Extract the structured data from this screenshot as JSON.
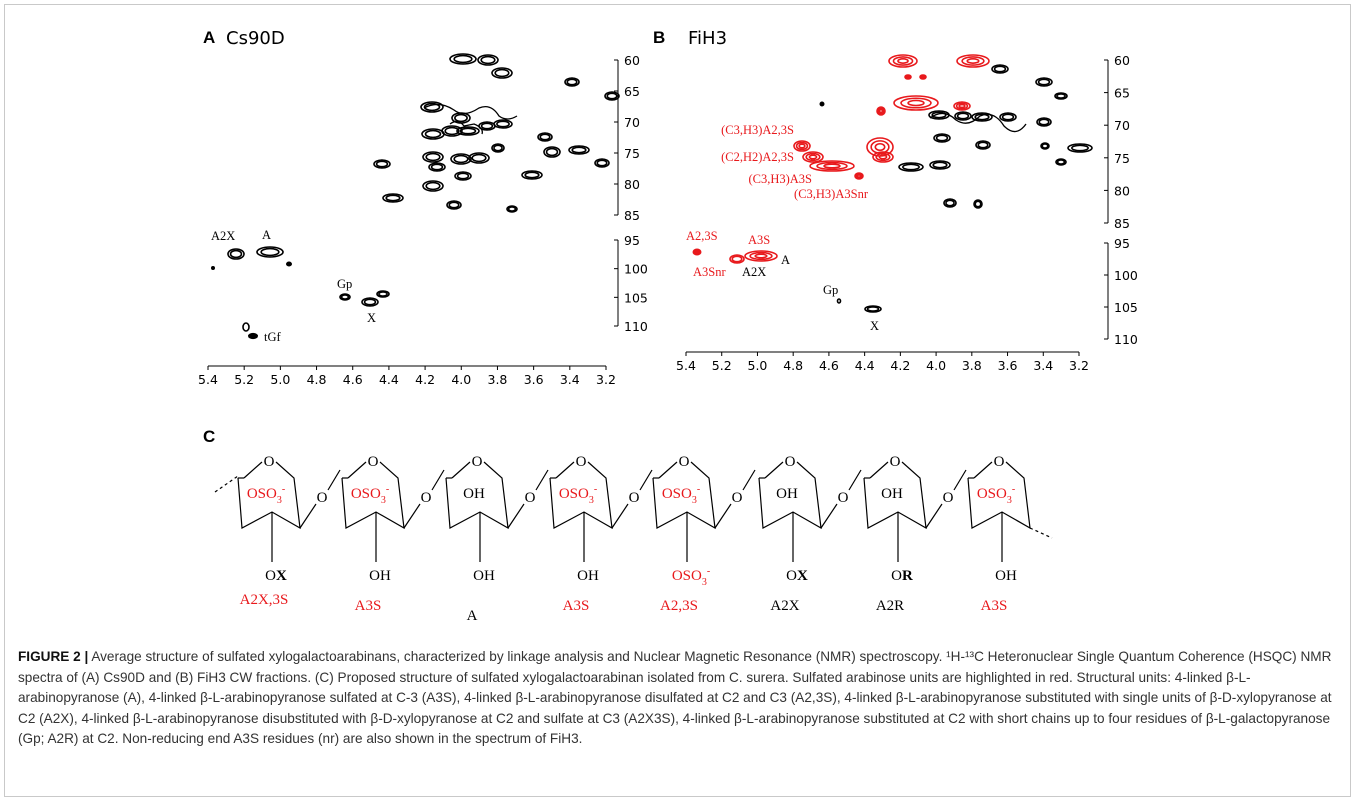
{
  "panels": {
    "A": {
      "letter": "A",
      "name": "Cs90D",
      "x_ticks": [
        "5.4",
        "5.2",
        "5.0",
        "4.8",
        "4.6",
        "4.4",
        "4.2",
        "4.0",
        "3.8",
        "3.6",
        "3.4",
        "3.2"
      ],
      "y_ticks_upper": [
        "60",
        "65",
        "70",
        "75",
        "80",
        "85"
      ],
      "y_ticks_lower": [
        "95",
        "100",
        "105",
        "110"
      ],
      "annotations": [
        "A2X",
        "A",
        "Gp",
        "X",
        "tGf"
      ]
    },
    "B": {
      "letter": "B",
      "name": "FiH3",
      "x_ticks": [
        "5.4",
        "5.2",
        "5.0",
        "4.8",
        "4.6",
        "4.4",
        "4.2",
        "4.0",
        "3.8",
        "3.6",
        "3.4",
        "3.2"
      ],
      "y_ticks_upper": [
        "60",
        "65",
        "70",
        "75",
        "80",
        "85"
      ],
      "y_ticks_lower": [
        "95",
        "100",
        "105",
        "110"
      ],
      "red_annotations": [
        "(C3,H3)A2,3S",
        "(C2,H2)A2,3S",
        "(C3,H3)A3S",
        "(C3,H3)A3Snr",
        "A2,3S",
        "A3S",
        "A3Snr"
      ],
      "black_annotations": [
        "A",
        "A2X",
        "Gp",
        "X"
      ]
    },
    "C": {
      "letter": "C",
      "substituents": [
        "OSO3-",
        "OSO3-",
        "OH",
        "OSO3-",
        "OSO3-",
        "OH",
        "OH",
        "OSO3-"
      ],
      "bottom_groups": [
        "OX",
        "OH",
        "OH",
        "OH",
        "OSO3-",
        "OX",
        "OR",
        "OH"
      ],
      "unit_labels": [
        "A2X,3S",
        "A3S",
        "A",
        "A3S",
        "A2,3S",
        "A2X",
        "A2R",
        "A3S"
      ]
    }
  },
  "colors": {
    "red": "#e8191c",
    "black": "#000000",
    "caption": "#333333"
  },
  "caption": {
    "label": "FIGURE 2 |",
    "text": "Average structure of sulfated xylogalactoarabinans, characterized by linkage analysis and Nuclear Magnetic Resonance (NMR) spectroscopy. ¹H-¹³C Heteronuclear Single Quantum Coherence (HSQC) NMR spectra of (A) Cs90D and (B) FiH3 CW fractions. (C) Proposed structure of sulfated xylogalactoarabinan isolated from C. surera. Sulfated arabinose units are highlighted in red. Structural units: 4-linked β-L-arabinopyranose (A), 4-linked β-L-arabinopyranose sulfated at C-3 (A3S), 4-linked β-L-arabinopyranose disulfated at C2 and C3 (A2,3S), 4-linked β-L-arabinopyranose substituted with single units of β-D-xylopyranose at C2 (A2X), 4-linked β-L-arabinopyranose disubstituted with β-D-xylopyranose at C2 and sulfate at C3 (A2X3S), 4-linked β-L-arabinopyranose substituted at C2 with short chains up to four residues of β-L-galactopyranose (Gp; A2R) at C2. Non-reducing end A3S residues (nr) are also shown in the spectrum of FiH3."
  }
}
